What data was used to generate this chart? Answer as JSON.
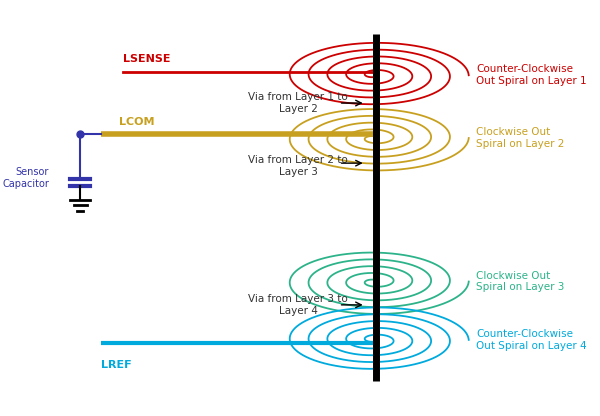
{
  "bg_color": "#ffffff",
  "fig_width": 6.0,
  "fig_height": 4.16,
  "dpi": 100,
  "lsense_label": "LSENSE",
  "lsense_color": "#cc0000",
  "lcom_label": "LCOM",
  "lcom_color": "#c8a020",
  "lref_label": "LREF",
  "lref_color": "#00aadd",
  "sensor_cap_label": "Sensor\nCapacitor",
  "sensor_cap_color": "#3333aa",
  "spiral_colors": [
    "#cc0000",
    "#c8a020",
    "#2db38a",
    "#00aadd"
  ],
  "spiral_labels": [
    "Counter-Clockwise\nOut Spiral on Layer 1",
    "Clockwise Out\nSpiral on Layer 2",
    "Clockwise Out\nSpiral on Layer 3",
    "Counter-Clockwise\nOut Spiral on Layer 4"
  ],
  "via_labels": [
    "Via from Layer 1 to\nLayer 2",
    "Via from Layer 2 to\nLayer 3",
    "Via from Layer 3 to\nLayer 4"
  ],
  "label_fontsize": 8,
  "via_fontsize": 7.5,
  "spiral_label_fontsize": 7.5
}
